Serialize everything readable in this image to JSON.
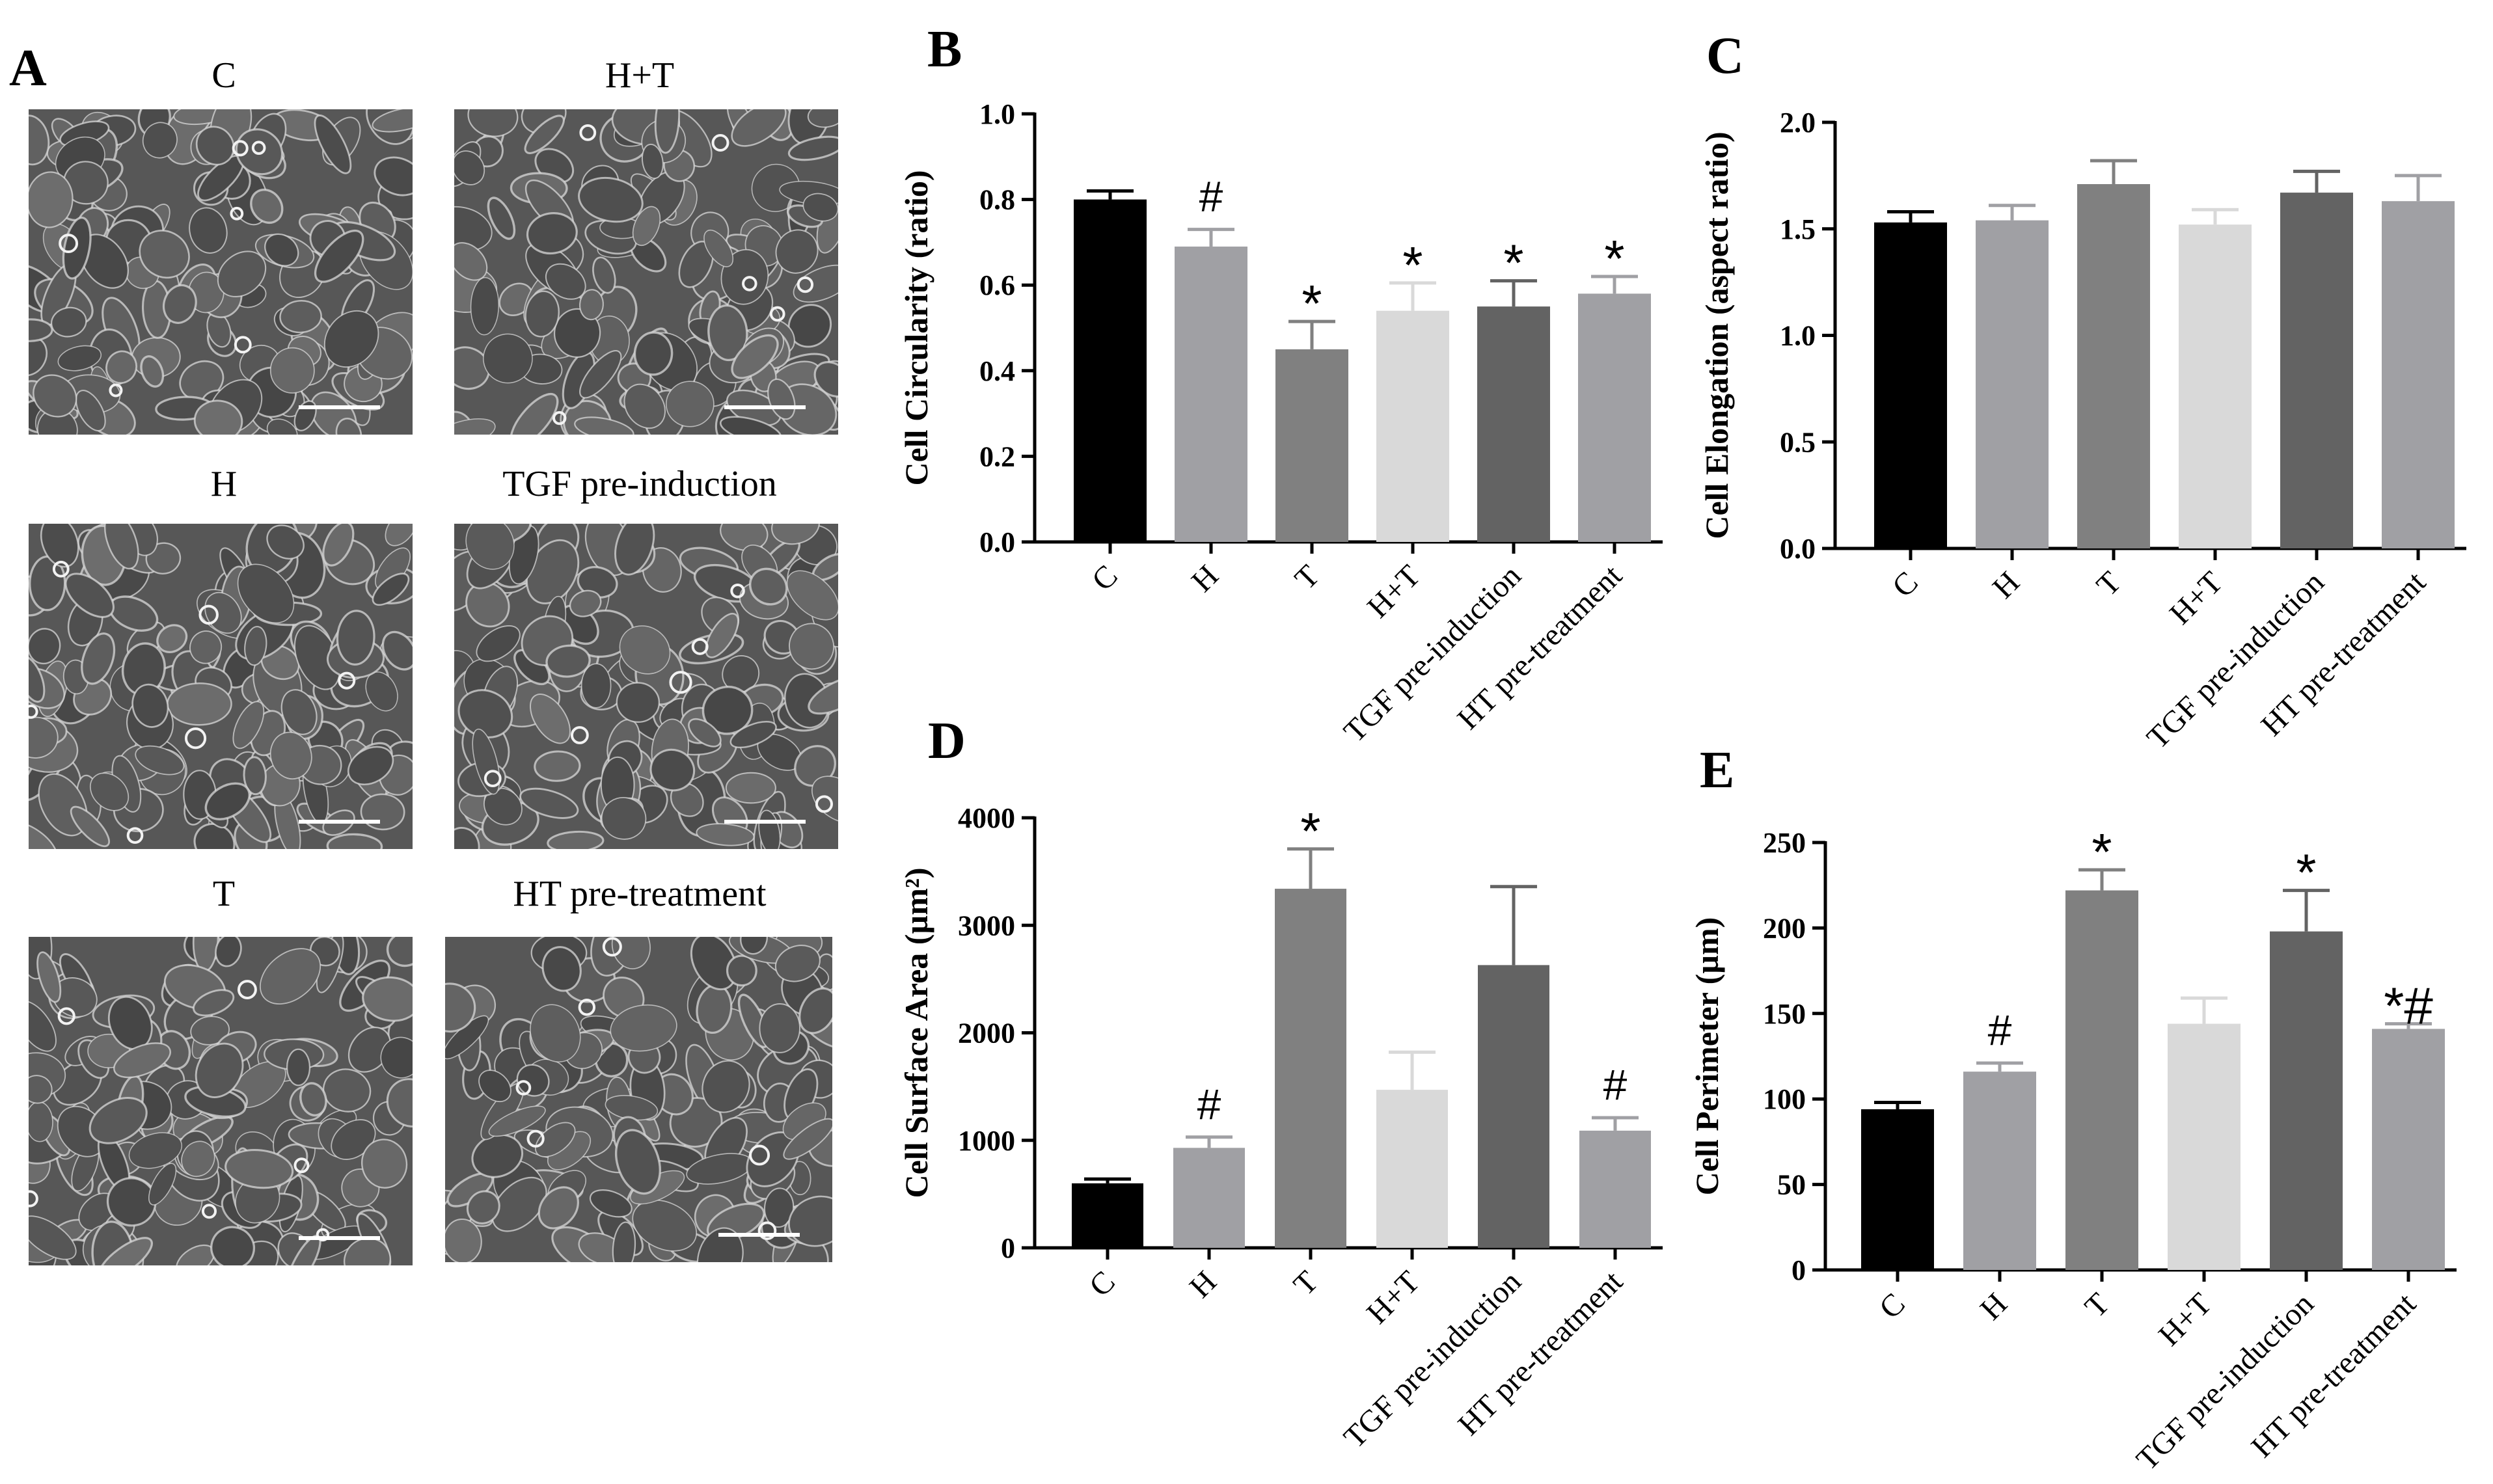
{
  "panel_a": {
    "label": "A",
    "images": [
      {
        "title": "C"
      },
      {
        "title": "H+T"
      },
      {
        "title": "H"
      },
      {
        "title": "TGF pre-induction"
      },
      {
        "title": "T"
      },
      {
        "title": "HT pre-treatment"
      }
    ]
  },
  "colors": {
    "C": "#000000",
    "H": "#a0a0a4",
    "T": "#808080",
    "H+T": "#d9d9d9",
    "TGF pre-induction": "#636363",
    "HT pre-treatment": "#a0a0a4"
  },
  "chart_data": [
    {
      "panel": "B",
      "type": "bar",
      "ylabel": "Cell Circularity (ratio)",
      "categories": [
        "C",
        "H",
        "T",
        "H+T",
        "TGF pre-induction",
        "HT pre-treatment"
      ],
      "values": [
        0.8,
        0.69,
        0.45,
        0.54,
        0.55,
        0.58
      ],
      "errors": [
        0.02,
        0.04,
        0.065,
        0.065,
        0.06,
        0.04
      ],
      "annotations": [
        "",
        "#",
        "*",
        "*",
        "*",
        "*"
      ],
      "ylim": [
        0,
        1.0
      ],
      "yticks": [
        "0.0",
        "0.2",
        "0.4",
        "0.6",
        "0.8",
        "1.0"
      ]
    },
    {
      "panel": "C",
      "type": "bar",
      "ylabel": "Cell Elongation (aspect ratio)",
      "categories": [
        "C",
        "H",
        "T",
        "H+T",
        "TGF pre-induction",
        "HT pre-treatment"
      ],
      "values": [
        1.53,
        1.54,
        1.71,
        1.52,
        1.67,
        1.63
      ],
      "errors": [
        0.05,
        0.07,
        0.11,
        0.07,
        0.1,
        0.12
      ],
      "annotations": [
        "",
        "",
        "",
        "",
        "",
        ""
      ],
      "ylim": [
        0,
        2.0
      ],
      "yticks": [
        "0.0",
        "0.5",
        "1.0",
        "1.5",
        "2.0"
      ]
    },
    {
      "panel": "D",
      "type": "bar",
      "ylabel": "Cell Surface Area (µm²)",
      "categories": [
        "C",
        "H",
        "T",
        "H+T",
        "TGF pre-induction",
        "HT pre-treatment"
      ],
      "values": [
        600,
        930,
        3340,
        1470,
        2630,
        1090
      ],
      "errors": [
        40,
        100,
        370,
        350,
        730,
        120
      ],
      "annotations": [
        "",
        "#",
        "*",
        "",
        "",
        "#"
      ],
      "ylim": [
        0,
        4000
      ],
      "yticks": [
        "0",
        "1000",
        "2000",
        "3000",
        "4000"
      ]
    },
    {
      "panel": "E",
      "type": "bar",
      "ylabel": "Cell Perimeter (µm)",
      "categories": [
        "C",
        "H",
        "T",
        "H+T",
        "TGF pre-induction",
        "HT pre-treatment"
      ],
      "values": [
        94,
        116,
        222,
        144,
        198,
        141
      ],
      "errors": [
        4,
        5,
        12,
        15,
        24,
        3
      ],
      "annotations": [
        "",
        "#",
        "*",
        "",
        "*",
        "*#"
      ],
      "ylim": [
        0,
        250
      ],
      "yticks": [
        "0",
        "50",
        "100",
        "150",
        "200",
        "250"
      ]
    }
  ]
}
